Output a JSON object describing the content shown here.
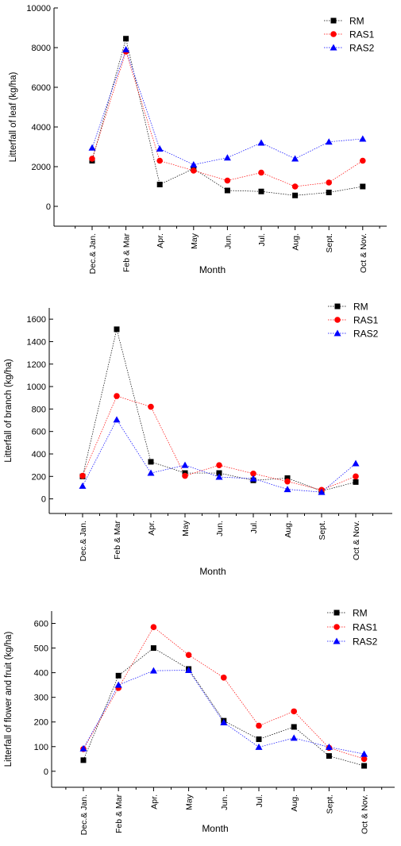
{
  "chart_data": [
    {
      "type": "line",
      "ylabel": "Litterfall of leaf (kg/ha)",
      "xlabel": "Month",
      "categories": [
        "Dec.& Jan.",
        "Feb & Mar",
        "Apr.",
        "May",
        "Jun.",
        "Jul.",
        "Aug.",
        "Sept.",
        "Oct & Nov."
      ],
      "ylim": [
        -1000,
        10000
      ],
      "yticks": [
        0,
        2000,
        4000,
        6000,
        8000,
        10000
      ],
      "legend_position": "top-right",
      "series": [
        {
          "name": "RM",
          "color": "#000000",
          "marker": "square",
          "values": [
            2300,
            8450,
            1100,
            1900,
            800,
            750,
            550,
            700,
            1000
          ]
        },
        {
          "name": "RAS1",
          "color": "#ff0000",
          "marker": "circle",
          "values": [
            2400,
            7800,
            2300,
            1800,
            1300,
            1700,
            1000,
            1200,
            2300
          ]
        },
        {
          "name": "RAS2",
          "color": "#0000ff",
          "marker": "triangle",
          "values": [
            2950,
            7900,
            2900,
            2100,
            2450,
            3200,
            2400,
            3250,
            3400
          ]
        }
      ]
    },
    {
      "type": "line",
      "ylabel": "Litterfall of branch (kg/ha)",
      "xlabel": "Month",
      "categories": [
        "Dec.& Jan.",
        "Feb & Mar",
        "Apr.",
        "May",
        "Jun.",
        "Jul.",
        "Aug.",
        "Sept.",
        "Oct & Nov."
      ],
      "ylim": [
        -130,
        1700
      ],
      "yticks": [
        0,
        200,
        400,
        600,
        800,
        1000,
        1200,
        1400,
        1600
      ],
      "legend_position": "top-right",
      "series": [
        {
          "name": "RM",
          "color": "#000000",
          "marker": "square",
          "values": [
            200,
            1510,
            330,
            230,
            230,
            165,
            185,
            70,
            150
          ]
        },
        {
          "name": "RAS1",
          "color": "#ff0000",
          "marker": "circle",
          "values": [
            205,
            915,
            820,
            205,
            300,
            225,
            155,
            80,
            200
          ]
        },
        {
          "name": "RAS2",
          "color": "#0000ff",
          "marker": "triangle",
          "values": [
            115,
            705,
            230,
            300,
            195,
            180,
            85,
            60,
            315
          ]
        }
      ]
    },
    {
      "type": "line",
      "ylabel": "Litterfall of flower and fruit (kg/ha)",
      "xlabel": "Month",
      "categories": [
        "Dec.& Jan.",
        "Feb & Mar",
        "Apr.",
        "May",
        "Jun.",
        "Jul.",
        "Aug.",
        "Sept.",
        "Oct & Nov."
      ],
      "ylim": [
        -65,
        650
      ],
      "yticks": [
        0,
        100,
        200,
        300,
        400,
        500,
        600
      ],
      "legend_position": "top-right",
      "series": [
        {
          "name": "RM",
          "color": "#000000",
          "marker": "square",
          "values": [
            45,
            388,
            500,
            415,
            205,
            130,
            180,
            62,
            22
          ]
        },
        {
          "name": "RAS1",
          "color": "#ff0000",
          "marker": "circle",
          "values": [
            90,
            338,
            585,
            472,
            380,
            185,
            243,
            95,
            50
          ]
        },
        {
          "name": "RAS2",
          "color": "#0000ff",
          "marker": "triangle",
          "values": [
            92,
            350,
            408,
            410,
            198,
            98,
            135,
            98,
            70
          ]
        }
      ]
    }
  ]
}
